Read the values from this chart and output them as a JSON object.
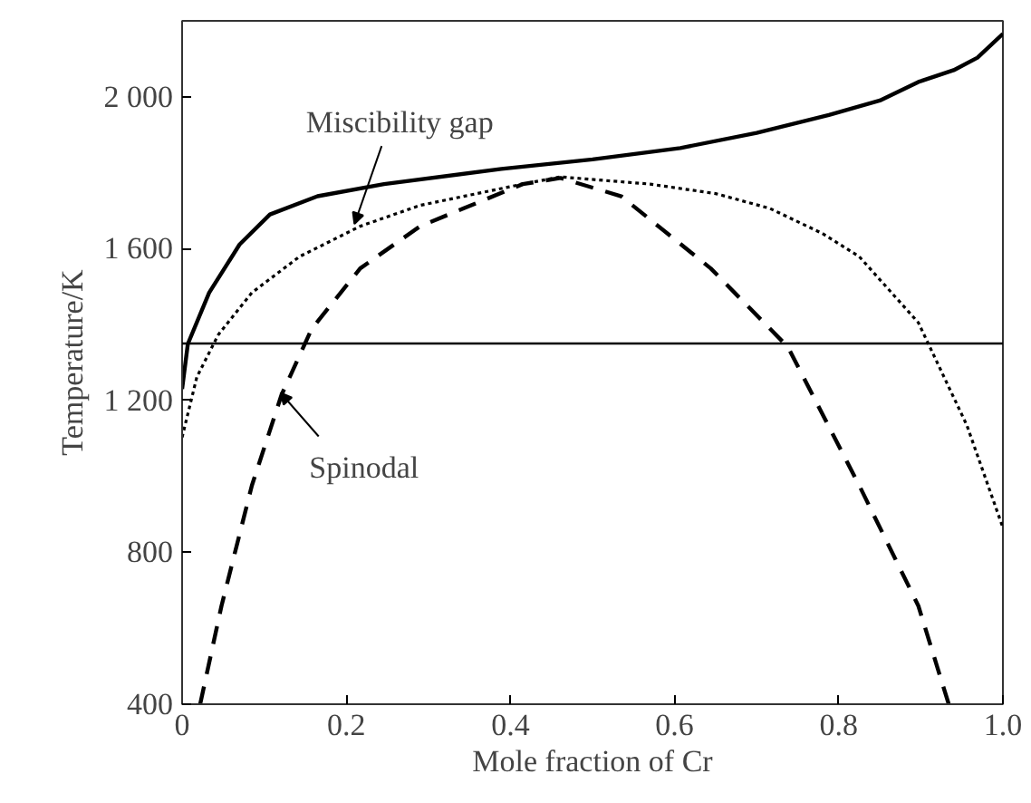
{
  "chart_data": {
    "type": "line",
    "xlabel": "Mole fraction of Cr",
    "ylabel": "Temperature/K",
    "xlim": [
      0,
      1.0
    ],
    "ylim": [
      400,
      2200
    ],
    "xticks": [
      0,
      0.2,
      0.4,
      0.6,
      0.8,
      {
        "value": 1.0,
        "label": "1.0"
      }
    ],
    "yticks": [
      400,
      800,
      {
        "value": 1200,
        "label": "1 200"
      },
      {
        "value": 1600,
        "label": "1 600"
      },
      {
        "value": 2000,
        "label": "2 000"
      }
    ],
    "grid": false,
    "series": [
      {
        "color": "#000000",
        "line_style": "solid",
        "x": [
          0,
          0.007,
          0.033,
          0.07,
          0.107,
          0.165,
          0.246,
          0.389,
          0.5,
          0.607,
          0.7,
          0.788,
          0.85,
          0.897,
          0.94,
          0.969,
          1.0
        ],
        "values": [
          1230,
          1349,
          1484,
          1611,
          1690,
          1738,
          1770,
          1810,
          1835,
          1865,
          1905,
          1952,
          1990,
          2039,
          2070,
          2103,
          2166
        ]
      },
      {
        "color": "#000000",
        "line_style": "dotted",
        "x": [
          0,
          0.018,
          0.044,
          0.085,
          0.143,
          0.217,
          0.29,
          0.415,
          0.461,
          0.57,
          0.65,
          0.716,
          0.78,
          0.825,
          0.897,
          0.956,
          1.0
        ],
        "values": [
          1103,
          1262,
          1373,
          1484,
          1579,
          1659,
          1714,
          1770,
          1789,
          1770,
          1745,
          1706,
          1640,
          1579,
          1405,
          1135,
          865
        ]
      },
      {
        "color": "#000000",
        "line_style": "dashed",
        "x": [
          0.022,
          0.048,
          0.085,
          0.121,
          0.158,
          0.217,
          0.29,
          0.415,
          0.461,
          0.535,
          0.644,
          0.738,
          0.825,
          0.897,
          0.934
        ],
        "values": [
          400,
          659,
          976,
          1214,
          1389,
          1548,
          1659,
          1770,
          1786,
          1738,
          1548,
          1341,
          976,
          659,
          400
        ]
      }
    ],
    "ref_lines": [
      {
        "axis": "y",
        "value": 1350,
        "color": "#000000"
      }
    ],
    "annotations": [
      {
        "text": "Miscibility gap",
        "x": 0.21,
        "y": 1665
      },
      {
        "text": "Spinodal",
        "x": 0.12,
        "y": 1220
      }
    ]
  }
}
